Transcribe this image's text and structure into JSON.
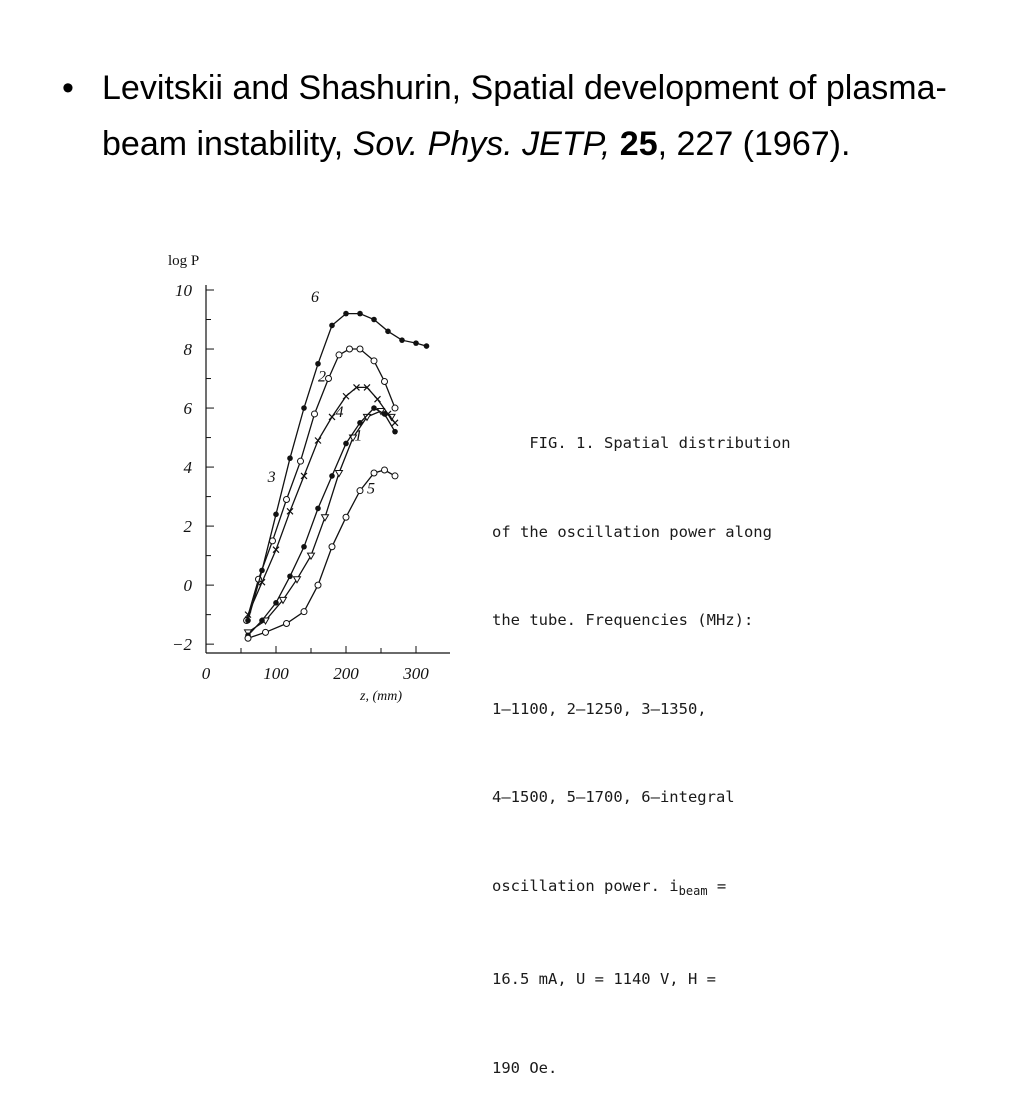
{
  "slide": {
    "bullet_symbol": "•",
    "authors": "Levitskii and Shashurin, Spatial development of plasma-beam instability, ",
    "journal": "Sov. Phys. JETP,",
    "volume": "25",
    "tail": ", 227 (1967)."
  },
  "chart_data": {
    "type": "line",
    "ylabel": "log P",
    "xlabel": "z, (mm)",
    "xlim": [
      0,
      320
    ],
    "ylim": [
      -2.3,
      10
    ],
    "x_ticks": [
      "0",
      "100",
      "200",
      "300"
    ],
    "y_ticks": [
      "10",
      "8",
      "6",
      "4",
      "2",
      "0",
      "−2"
    ],
    "series": [
      {
        "name": "1",
        "marker": "triangle",
        "x": [
          60,
          85,
          110,
          130,
          150,
          170,
          190,
          210,
          230,
          250,
          265
        ],
        "y": [
          -1.6,
          -1.2,
          -0.5,
          0.2,
          1.0,
          2.3,
          3.8,
          5.0,
          5.7,
          5.9,
          5.7
        ]
      },
      {
        "name": "2",
        "marker": "cross",
        "x": [
          60,
          80,
          100,
          120,
          140,
          160,
          180,
          200,
          215,
          230,
          245,
          260,
          270
        ],
        "y": [
          -1.0,
          0.1,
          1.2,
          2.5,
          3.7,
          4.9,
          5.7,
          6.4,
          6.7,
          6.7,
          6.3,
          5.8,
          5.5
        ]
      },
      {
        "name": "3",
        "marker": "open-circle",
        "x": [
          58,
          75,
          95,
          115,
          135,
          155,
          175,
          190,
          205,
          220,
          240,
          255,
          270
        ],
        "y": [
          -1.2,
          0.2,
          1.5,
          2.9,
          4.2,
          5.8,
          7.0,
          7.8,
          8.0,
          8.0,
          7.6,
          6.9,
          6.0
        ]
      },
      {
        "name": "4",
        "marker": "filled-circle",
        "x": [
          60,
          80,
          100,
          120,
          140,
          160,
          180,
          200,
          220,
          240,
          255,
          270
        ],
        "y": [
          -1.7,
          -1.2,
          -0.6,
          0.3,
          1.3,
          2.6,
          3.7,
          4.8,
          5.5,
          6.0,
          5.8,
          5.2
        ]
      },
      {
        "name": "5",
        "marker": "open-circle",
        "x": [
          60,
          85,
          115,
          140,
          160,
          180,
          200,
          220,
          240,
          255,
          270
        ],
        "y": [
          -1.8,
          -1.6,
          -1.3,
          -0.9,
          0.0,
          1.3,
          2.3,
          3.2,
          3.8,
          3.9,
          3.7
        ]
      },
      {
        "name": "6",
        "marker": "filled-circle",
        "x": [
          60,
          80,
          100,
          120,
          140,
          160,
          180,
          200,
          220,
          240,
          260,
          280,
          300,
          315
        ],
        "y": [
          -1.2,
          0.5,
          2.4,
          4.3,
          6.0,
          7.5,
          8.8,
          9.2,
          9.2,
          9.0,
          8.6,
          8.3,
          8.2,
          8.1
        ]
      }
    ]
  },
  "caption": {
    "lines": [
      "    FIG. 1. Spatial distribution",
      "of the oscillation power along",
      "the tube. Frequencies (MHz):",
      "1—1100, 2—1250, 3—1350,",
      "4—1500, 5—1700, 6—integral",
      "oscillation power. i",
      "16.5 mA, U = 1140 V, H =",
      "190 Oe."
    ],
    "ibeam_subscript": "beam",
    "ibeam_tail": " ="
  }
}
